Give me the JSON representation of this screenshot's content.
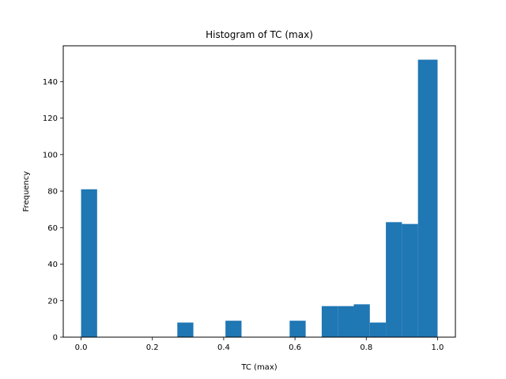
{
  "chart_data": {
    "type": "bar",
    "title": "Histogram of TC (max)",
    "xlabel": "TC (max)",
    "ylabel": "Frequency",
    "xlim": [
      -0.05,
      1.05
    ],
    "ylim": [
      0,
      159.6
    ],
    "xticks": [
      0.0,
      0.2,
      0.4,
      0.6,
      0.8,
      1.0
    ],
    "xtick_labels": [
      "0.0",
      "0.2",
      "0.4",
      "0.6",
      "0.8",
      "1.0"
    ],
    "yticks": [
      0,
      20,
      40,
      60,
      80,
      100,
      120,
      140
    ],
    "ytick_labels": [
      "0",
      "20",
      "40",
      "60",
      "80",
      "100",
      "120",
      "140"
    ],
    "grid": false,
    "bin_edges": [
      0.0,
      0.045,
      0.09,
      0.135,
      0.18,
      0.225,
      0.27,
      0.315,
      0.36,
      0.405,
      0.45,
      0.495,
      0.54,
      0.585,
      0.63,
      0.675,
      0.72,
      0.765,
      0.81,
      0.855,
      0.9,
      0.945,
      1.0
    ],
    "values": [
      81,
      0,
      0,
      0,
      0,
      0,
      8,
      0,
      0,
      9,
      0,
      0,
      0,
      9,
      0,
      17,
      17,
      18,
      8,
      63,
      62,
      152
    ],
    "color": "#1f77b4"
  }
}
